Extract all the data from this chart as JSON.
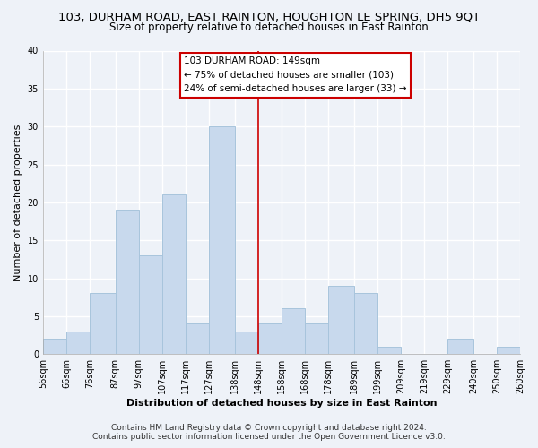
{
  "title_line1": "103, DURHAM ROAD, EAST RAINTON, HOUGHTON LE SPRING, DH5 9QT",
  "title_line2": "Size of property relative to detached houses in East Rainton",
  "xlabel": "Distribution of detached houses by size in East Rainton",
  "ylabel": "Number of detached properties",
  "bin_labels": [
    "56sqm",
    "66sqm",
    "76sqm",
    "87sqm",
    "97sqm",
    "107sqm",
    "117sqm",
    "127sqm",
    "138sqm",
    "148sqm",
    "158sqm",
    "168sqm",
    "178sqm",
    "189sqm",
    "199sqm",
    "209sqm",
    "219sqm",
    "229sqm",
    "240sqm",
    "250sqm",
    "260sqm"
  ],
  "bin_edges": [
    56,
    66,
    76,
    87,
    97,
    107,
    117,
    127,
    138,
    148,
    158,
    168,
    178,
    189,
    199,
    209,
    219,
    229,
    240,
    250,
    260
  ],
  "bar_heights": [
    2,
    3,
    8,
    19,
    13,
    21,
    4,
    30,
    3,
    4,
    6,
    4,
    9,
    8,
    1,
    0,
    0,
    2,
    0,
    1,
    0
  ],
  "bar_color": "#c8d9ed",
  "bar_edge_color": "#a8c4dc",
  "vline_x": 148,
  "vline_color": "#cc0000",
  "annotation_title": "103 DURHAM ROAD: 149sqm",
  "annotation_line1": "← 75% of detached houses are smaller (103)",
  "annotation_line2": "24% of semi-detached houses are larger (33) →",
  "annotation_box_color": "#ffffff",
  "annotation_box_edge": "#cc0000",
  "ylim": [
    0,
    40
  ],
  "yticks": [
    0,
    5,
    10,
    15,
    20,
    25,
    30,
    35,
    40
  ],
  "footer_line1": "Contains HM Land Registry data © Crown copyright and database right 2024.",
  "footer_line2": "Contains public sector information licensed under the Open Government Licence v3.0.",
  "bg_color": "#eef2f8",
  "plot_bg_color": "#eef2f8",
  "grid_color": "#ffffff",
  "title_fontsize": 9.5,
  "subtitle_fontsize": 8.5,
  "axis_label_fontsize": 8,
  "tick_fontsize": 7,
  "footer_fontsize": 6.5
}
